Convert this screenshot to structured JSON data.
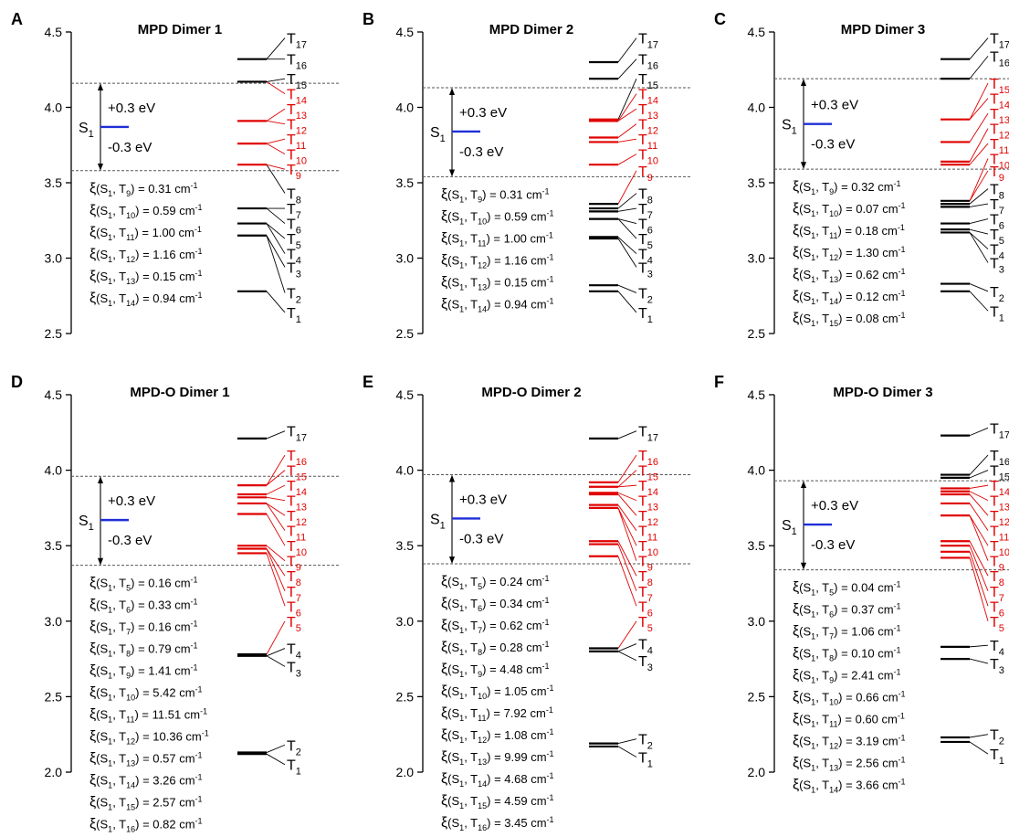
{
  "chart_data": [
    {
      "type": "energy-level-diagram",
      "panel_letter": "A",
      "title": "MPD Dimer 1",
      "ylim": [
        2.5,
        4.5
      ],
      "yticks": [
        "2.5",
        "3.0",
        "3.5",
        "4.0",
        "4.5"
      ],
      "s1": 3.87,
      "window": [
        3.58,
        4.16
      ],
      "plus_label": "+0.3 eV",
      "minus_label": "-0.3 eV",
      "s1_label": "S",
      "s1_sub": "1",
      "triplets_in_window": [
        3.62,
        3.76,
        3.91
      ],
      "triplets_out_window": [
        2.78,
        3.15,
        3.23,
        3.33,
        4.17,
        4.32
      ],
      "t_labels": [
        {
          "n": "17",
          "y": 4.46,
          "red": false
        },
        {
          "n": "16",
          "y": 4.32,
          "red": false
        },
        {
          "n": "15",
          "y": 4.19,
          "red": false
        },
        {
          "n": "14",
          "y": 4.09,
          "red": true
        },
        {
          "n": "13",
          "y": 3.99,
          "red": true
        },
        {
          "n": "12",
          "y": 3.89,
          "red": true
        },
        {
          "n": "11",
          "y": 3.79,
          "red": true
        },
        {
          "n": "10",
          "y": 3.69,
          "red": true
        },
        {
          "n": "9",
          "y": 3.59,
          "red": true
        },
        {
          "n": "8",
          "y": 3.43,
          "red": false
        },
        {
          "n": "7",
          "y": 3.33,
          "red": false
        },
        {
          "n": "6",
          "y": 3.23,
          "red": false
        },
        {
          "n": "5",
          "y": 3.13,
          "red": false
        },
        {
          "n": "4",
          "y": 3.03,
          "red": false
        },
        {
          "n": "3",
          "y": 2.94,
          "red": false
        },
        {
          "n": "2",
          "y": 2.77,
          "red": false
        },
        {
          "n": "1",
          "y": 2.64,
          "red": false
        }
      ],
      "couplings": [
        {
          "t": "9",
          "val": "0.31"
        },
        {
          "t": "10",
          "val": "0.59"
        },
        {
          "t": "11",
          "val": "1.00"
        },
        {
          "t": "12",
          "val": "1.16"
        },
        {
          "t": "13",
          "val": "0.15"
        },
        {
          "t": "14",
          "val": "0.94"
        }
      ]
    },
    {
      "type": "energy-level-diagram",
      "panel_letter": "B",
      "title": "MPD Dimer 2",
      "ylim": [
        2.5,
        4.5
      ],
      "yticks": [
        "2.5",
        "3.0",
        "3.5",
        "4.0",
        "4.5"
      ],
      "s1": 3.84,
      "window": [
        3.54,
        4.13
      ],
      "plus_label": "+0.3 eV",
      "minus_label": "-0.3 eV",
      "s1_label": "S",
      "s1_sub": "1",
      "triplets_in_window": [
        3.62,
        3.77,
        3.8,
        3.91,
        3.92
      ],
      "triplets_out_window": [
        2.78,
        2.82,
        3.13,
        3.14,
        3.26,
        3.31,
        3.33,
        3.36,
        4.19,
        4.3
      ],
      "t_labels": [
        {
          "n": "17",
          "y": 4.46,
          "red": false
        },
        {
          "n": "16",
          "y": 4.32,
          "red": false
        },
        {
          "n": "15",
          "y": 4.19,
          "red": false
        },
        {
          "n": "14",
          "y": 4.09,
          "red": true
        },
        {
          "n": "13",
          "y": 3.99,
          "red": true
        },
        {
          "n": "12",
          "y": 3.89,
          "red": true
        },
        {
          "n": "11",
          "y": 3.79,
          "red": true
        },
        {
          "n": "10",
          "y": 3.69,
          "red": true
        },
        {
          "n": "9",
          "y": 3.58,
          "red": true
        },
        {
          "n": "8",
          "y": 3.43,
          "red": false
        },
        {
          "n": "7",
          "y": 3.33,
          "red": false
        },
        {
          "n": "6",
          "y": 3.23,
          "red": false
        },
        {
          "n": "5",
          "y": 3.13,
          "red": false
        },
        {
          "n": "4",
          "y": 3.03,
          "red": false
        },
        {
          "n": "3",
          "y": 2.94,
          "red": false
        },
        {
          "n": "2",
          "y": 2.77,
          "red": false
        },
        {
          "n": "1",
          "y": 2.64,
          "red": false
        }
      ],
      "couplings": [
        {
          "t": "9",
          "val": "0.31"
        },
        {
          "t": "10",
          "val": "0.59"
        },
        {
          "t": "11",
          "val": "1.00"
        },
        {
          "t": "12",
          "val": "1.16"
        },
        {
          "t": "13",
          "val": "0.15"
        },
        {
          "t": "14",
          "val": "0.94"
        }
      ]
    },
    {
      "type": "energy-level-diagram",
      "panel_letter": "C",
      "title": "MPD Dimer 3",
      "ylim": [
        2.5,
        4.5
      ],
      "yticks": [
        "2.5",
        "3.0",
        "3.5",
        "4.0",
        "4.5"
      ],
      "s1": 3.89,
      "window": [
        3.59,
        4.19
      ],
      "plus_label": "+0.3 eV",
      "minus_label": "-0.3 eV",
      "s1_label": "S",
      "s1_sub": "1",
      "triplets_in_window": [
        3.62,
        3.64,
        3.77,
        3.92
      ],
      "triplets_out_window": [
        2.78,
        2.83,
        3.17,
        3.19,
        3.23,
        3.34,
        3.36,
        3.38,
        4.19,
        4.32
      ],
      "t_labels": [
        {
          "n": "17",
          "y": 4.46,
          "red": false
        },
        {
          "n": "16",
          "y": 4.34,
          "red": false
        },
        {
          "n": "15",
          "y": 4.16,
          "red": true
        },
        {
          "n": "14",
          "y": 4.06,
          "red": true
        },
        {
          "n": "13",
          "y": 3.96,
          "red": true
        },
        {
          "n": "12",
          "y": 3.86,
          "red": true
        },
        {
          "n": "11",
          "y": 3.76,
          "red": true
        },
        {
          "n": "10",
          "y": 3.66,
          "red": true
        },
        {
          "n": "9",
          "y": 3.58,
          "red": true
        },
        {
          "n": "8",
          "y": 3.46,
          "red": false
        },
        {
          "n": "7",
          "y": 3.36,
          "red": false
        },
        {
          "n": "6",
          "y": 3.26,
          "red": false
        },
        {
          "n": "5",
          "y": 3.16,
          "red": false
        },
        {
          "n": "4",
          "y": 3.06,
          "red": false
        },
        {
          "n": "3",
          "y": 2.97,
          "red": false
        },
        {
          "n": "2",
          "y": 2.78,
          "red": false
        },
        {
          "n": "1",
          "y": 2.65,
          "red": false
        }
      ],
      "couplings": [
        {
          "t": "9",
          "val": "0.32"
        },
        {
          "t": "10",
          "val": "0.07"
        },
        {
          "t": "11",
          "val": "0.18"
        },
        {
          "t": "12",
          "val": "1.30"
        },
        {
          "t": "13",
          "val": "0.62"
        },
        {
          "t": "14",
          "val": "0.12"
        },
        {
          "t": "15",
          "val": "0.08"
        }
      ]
    },
    {
      "type": "energy-level-diagram",
      "panel_letter": "D",
      "title": "MPD-O Dimer 1",
      "ylim": [
        2.0,
        4.5
      ],
      "yticks": [
        "2.0",
        "2.5",
        "3.0",
        "3.5",
        "4.0",
        "4.5"
      ],
      "s1": 3.67,
      "window": [
        3.37,
        3.96
      ],
      "plus_label": "+0.3 eV",
      "minus_label": "-0.3 eV",
      "s1_label": "S",
      "s1_sub": "1",
      "triplets_in_window": [
        3.45,
        3.48,
        3.5,
        3.71,
        3.78,
        3.82,
        3.84,
        3.9
      ],
      "triplets_out_window": [
        2.12,
        2.13,
        2.77,
        2.78,
        4.21
      ],
      "t_labels": [
        {
          "n": "17",
          "y": 4.26,
          "red": false
        },
        {
          "n": "16",
          "y": 4.1,
          "red": true
        },
        {
          "n": "15",
          "y": 4.0,
          "red": true
        },
        {
          "n": "14",
          "y": 3.9,
          "red": true
        },
        {
          "n": "13",
          "y": 3.8,
          "red": true
        },
        {
          "n": "12",
          "y": 3.7,
          "red": true
        },
        {
          "n": "11",
          "y": 3.6,
          "red": true
        },
        {
          "n": "10",
          "y": 3.5,
          "red": true
        },
        {
          "n": "9",
          "y": 3.4,
          "red": true
        },
        {
          "n": "8",
          "y": 3.3,
          "red": true
        },
        {
          "n": "7",
          "y": 3.2,
          "red": true
        },
        {
          "n": "6",
          "y": 3.1,
          "red": true
        },
        {
          "n": "5",
          "y": 3.0,
          "red": true
        },
        {
          "n": "4",
          "y": 2.82,
          "red": false
        },
        {
          "n": "3",
          "y": 2.7,
          "red": false
        },
        {
          "n": "2",
          "y": 2.18,
          "red": false
        },
        {
          "n": "1",
          "y": 2.05,
          "red": false
        }
      ],
      "couplings": [
        {
          "t": "5",
          "val": "0.16"
        },
        {
          "t": "6",
          "val": "0.33"
        },
        {
          "t": "7",
          "val": "0.16"
        },
        {
          "t": "8",
          "val": "0.79"
        },
        {
          "t": "9",
          "val": "1.41"
        },
        {
          "t": "10",
          "val": "5.42"
        },
        {
          "t": "11",
          "val": "11.51"
        },
        {
          "t": "12",
          "val": "10.36"
        },
        {
          "t": "13",
          "val": "0.57"
        },
        {
          "t": "14",
          "val": "3.26"
        },
        {
          "t": "15",
          "val": "2.57"
        },
        {
          "t": "16",
          "val": "0.82"
        }
      ]
    },
    {
      "type": "energy-level-diagram",
      "panel_letter": "E",
      "title": "MPD-O Dimer 2",
      "ylim": [
        2.0,
        4.5
      ],
      "yticks": [
        "2.0",
        "2.5",
        "3.0",
        "3.5",
        "4.0",
        "4.5"
      ],
      "s1": 3.68,
      "window": [
        3.38,
        3.97
      ],
      "plus_label": "+0.3 eV",
      "minus_label": "-0.3 eV",
      "s1_label": "S",
      "s1_sub": "1",
      "triplets_in_window": [
        3.43,
        3.51,
        3.53,
        3.75,
        3.77,
        3.84,
        3.85,
        3.89,
        3.92
      ],
      "triplets_out_window": [
        2.17,
        2.19,
        2.8,
        2.82,
        4.21
      ],
      "t_labels": [
        {
          "n": "17",
          "y": 4.26,
          "red": false
        },
        {
          "n": "16",
          "y": 4.1,
          "red": true
        },
        {
          "n": "15",
          "y": 4.0,
          "red": true
        },
        {
          "n": "14",
          "y": 3.9,
          "red": true
        },
        {
          "n": "13",
          "y": 3.8,
          "red": true
        },
        {
          "n": "12",
          "y": 3.7,
          "red": true
        },
        {
          "n": "11",
          "y": 3.6,
          "red": true
        },
        {
          "n": "10",
          "y": 3.5,
          "red": true
        },
        {
          "n": "9",
          "y": 3.4,
          "red": true
        },
        {
          "n": "8",
          "y": 3.3,
          "red": true
        },
        {
          "n": "7",
          "y": 3.2,
          "red": true
        },
        {
          "n": "6",
          "y": 3.1,
          "red": true
        },
        {
          "n": "5",
          "y": 3.0,
          "red": true
        },
        {
          "n": "4",
          "y": 2.85,
          "red": false
        },
        {
          "n": "3",
          "y": 2.74,
          "red": false
        },
        {
          "n": "2",
          "y": 2.22,
          "red": false
        },
        {
          "n": "1",
          "y": 2.1,
          "red": false
        }
      ],
      "couplings": [
        {
          "t": "5",
          "val": "0.24"
        },
        {
          "t": "6",
          "val": "0.34"
        },
        {
          "t": "7",
          "val": "0.62"
        },
        {
          "t": "8",
          "val": "0.28"
        },
        {
          "t": "9",
          "val": "4.48"
        },
        {
          "t": "10",
          "val": "1.05"
        },
        {
          "t": "11",
          "val": "7.92"
        },
        {
          "t": "12",
          "val": "1.08"
        },
        {
          "t": "13",
          "val": "9.99"
        },
        {
          "t": "14",
          "val": "4.68"
        },
        {
          "t": "15",
          "val": "4.59"
        },
        {
          "t": "16",
          "val": "3.45"
        }
      ]
    },
    {
      "type": "energy-level-diagram",
      "panel_letter": "F",
      "title": "MPD-O Dimer 3",
      "ylim": [
        2.0,
        4.5
      ],
      "yticks": [
        "2.0",
        "2.5",
        "3.0",
        "3.5",
        "4.0",
        "4.5"
      ],
      "s1": 3.64,
      "window": [
        3.34,
        3.93
      ],
      "plus_label": "+0.3 eV",
      "minus_label": "-0.3 eV",
      "s1_label": "S",
      "s1_sub": "1",
      "triplets_in_window": [
        3.42,
        3.46,
        3.5,
        3.53,
        3.7,
        3.78,
        3.84,
        3.86,
        3.88
      ],
      "triplets_out_window": [
        2.2,
        2.23,
        2.75,
        2.83,
        3.95,
        3.97,
        4.23
      ],
      "t_labels": [
        {
          "n": "17",
          "y": 4.28,
          "red": false
        },
        {
          "n": "16",
          "y": 4.1,
          "red": false
        },
        {
          "n": "15",
          "y": 4.0,
          "red": false
        },
        {
          "n": "14",
          "y": 3.9,
          "red": true
        },
        {
          "n": "13",
          "y": 3.8,
          "red": true
        },
        {
          "n": "12",
          "y": 3.7,
          "red": true
        },
        {
          "n": "11",
          "y": 3.6,
          "red": true
        },
        {
          "n": "10",
          "y": 3.5,
          "red": true
        },
        {
          "n": "9",
          "y": 3.4,
          "red": true
        },
        {
          "n": "8",
          "y": 3.3,
          "red": true
        },
        {
          "n": "7",
          "y": 3.2,
          "red": true
        },
        {
          "n": "6",
          "y": 3.1,
          "red": true
        },
        {
          "n": "5",
          "y": 3.0,
          "red": true
        },
        {
          "n": "4",
          "y": 2.84,
          "red": false
        },
        {
          "n": "3",
          "y": 2.72,
          "red": false
        },
        {
          "n": "2",
          "y": 2.25,
          "red": false
        },
        {
          "n": "1",
          "y": 2.12,
          "red": false
        }
      ],
      "couplings": [
        {
          "t": "5",
          "val": "0.04"
        },
        {
          "t": "6",
          "val": "0.37"
        },
        {
          "t": "7",
          "val": "1.06"
        },
        {
          "t": "8",
          "val": "0.10"
        },
        {
          "t": "9",
          "val": "2.41"
        },
        {
          "t": "10",
          "val": "0.66"
        },
        {
          "t": "11",
          "val": "0.60"
        },
        {
          "t": "12",
          "val": "3.19"
        },
        {
          "t": "13",
          "val": "2.56"
        },
        {
          "t": "14",
          "val": "3.66"
        }
      ]
    }
  ],
  "coupling_text": {
    "xi": "ξ",
    "s_prefix": "(S",
    "s_sub": "1",
    "t_prefix": ", T",
    "close": ") = ",
    "unit": " cm",
    "unit_sup": "-1"
  },
  "colors": {
    "singlet": "#1f2fd6",
    "triplet_in_window": "#e00000",
    "triplet_out_window": "#000000",
    "axis": "#000000",
    "dashed": "#555555"
  }
}
